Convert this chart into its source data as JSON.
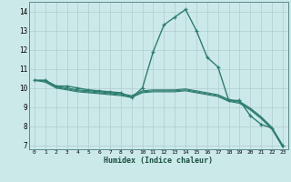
{
  "xlabel": "Humidex (Indice chaleur)",
  "bg_color": "#cce9e9",
  "grid_color": "#b0cccc",
  "line_color": "#2d7d6e",
  "xlim": [
    -0.5,
    23.5
  ],
  "ylim": [
    6.8,
    14.5
  ],
  "xticks": [
    0,
    1,
    2,
    3,
    4,
    5,
    6,
    7,
    8,
    9,
    10,
    11,
    12,
    13,
    14,
    15,
    16,
    17,
    18,
    19,
    20,
    21,
    22,
    23
  ],
  "yticks": [
    7,
    8,
    9,
    10,
    11,
    12,
    13,
    14
  ],
  "series": [
    {
      "x": [
        0,
        1,
        2,
        3,
        4,
        5,
        6,
        7,
        8,
        9,
        10,
        11,
        12,
        13,
        14,
        15,
        16,
        17,
        18,
        19,
        20,
        21,
        22,
        23
      ],
      "y": [
        10.4,
        10.4,
        10.1,
        10.1,
        10.0,
        9.9,
        9.85,
        9.8,
        9.75,
        9.5,
        10.0,
        11.9,
        13.3,
        13.7,
        14.1,
        13.0,
        11.6,
        11.1,
        9.35,
        9.35,
        8.55,
        8.1,
        7.9,
        7.0
      ],
      "marker": true,
      "linewidth": 1.0
    },
    {
      "x": [
        0,
        1,
        2,
        3,
        4,
        5,
        6,
        7,
        8,
        9,
        10,
        11,
        12,
        13,
        14,
        15,
        16,
        17,
        18,
        19,
        20,
        21,
        22,
        23
      ],
      "y": [
        10.4,
        10.4,
        10.1,
        10.0,
        9.9,
        9.85,
        9.8,
        9.75,
        9.7,
        9.6,
        9.85,
        9.9,
        9.9,
        9.9,
        9.95,
        9.85,
        9.75,
        9.65,
        9.4,
        9.3,
        8.95,
        8.5,
        7.95,
        7.0
      ],
      "marker": false,
      "linewidth": 0.8
    },
    {
      "x": [
        0,
        1,
        2,
        3,
        4,
        5,
        6,
        7,
        8,
        9,
        10,
        11,
        12,
        13,
        14,
        15,
        16,
        17,
        18,
        19,
        20,
        21,
        22,
        23
      ],
      "y": [
        10.4,
        10.35,
        10.05,
        9.95,
        9.85,
        9.8,
        9.75,
        9.7,
        9.65,
        9.55,
        9.8,
        9.85,
        9.85,
        9.85,
        9.9,
        9.8,
        9.7,
        9.6,
        9.35,
        9.25,
        8.9,
        8.45,
        7.9,
        6.95
      ],
      "marker": false,
      "linewidth": 0.8
    },
    {
      "x": [
        0,
        1,
        2,
        3,
        4,
        5,
        6,
        7,
        8,
        9,
        10,
        11,
        12,
        13,
        14,
        15,
        16,
        17,
        18,
        19,
        20,
        21,
        22,
        23
      ],
      "y": [
        10.4,
        10.3,
        10.0,
        9.9,
        9.8,
        9.75,
        9.7,
        9.65,
        9.6,
        9.5,
        9.75,
        9.8,
        9.8,
        9.8,
        9.85,
        9.75,
        9.65,
        9.55,
        9.3,
        9.2,
        8.85,
        8.4,
        7.85,
        6.9
      ],
      "marker": false,
      "linewidth": 0.8
    }
  ]
}
